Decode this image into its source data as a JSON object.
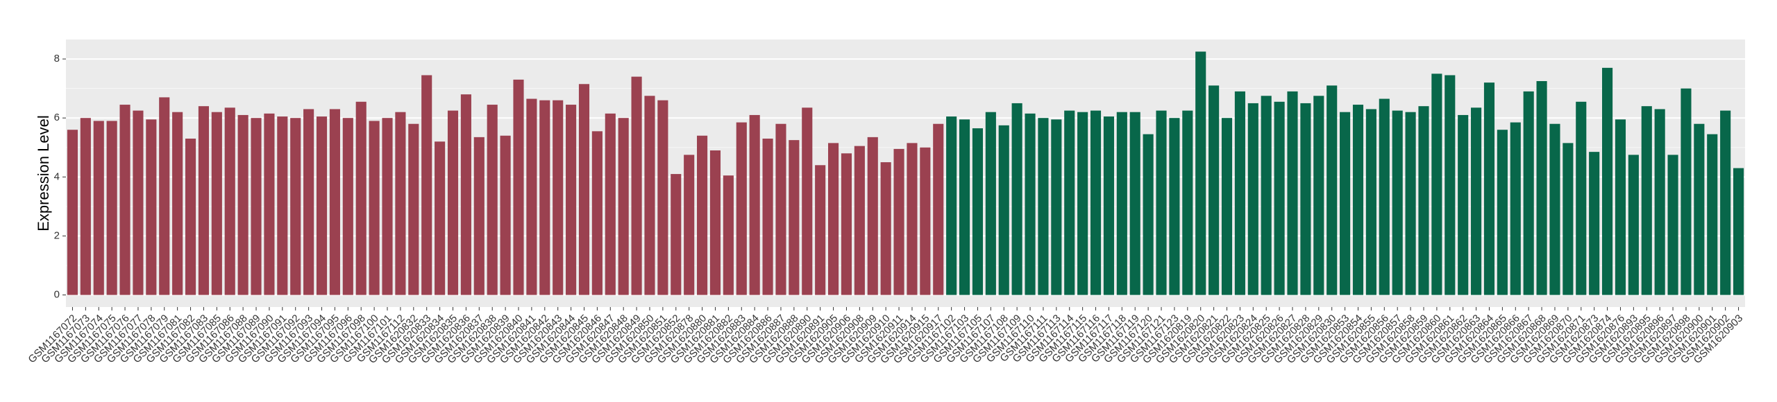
{
  "chart_data": {
    "type": "bar",
    "y_label": "Expression Level",
    "categories": [
      "GSM1167072",
      "GSM1167073",
      "GSM1167074",
      "GSM1167075",
      "GSM1167076",
      "GSM1167077",
      "GSM1167078",
      "GSM1167079",
      "GSM1167081",
      "GSM1167082",
      "GSM1167083",
      "GSM1167085",
      "GSM1167086",
      "GSM1167088",
      "GSM1167089",
      "GSM1167090",
      "GSM1167091",
      "GSM1167092",
      "GSM1167093",
      "GSM1167094",
      "GSM1167095",
      "GSM1167096",
      "GSM1167098",
      "GSM1167100",
      "GSM1167101",
      "GSM1167112",
      "GSM1620832",
      "GSM1620833",
      "GSM1620834",
      "GSM1620835",
      "GSM1620836",
      "GSM1620837",
      "GSM1620838",
      "GSM1620839",
      "GSM1620840",
      "GSM1620841",
      "GSM1620842",
      "GSM1620843",
      "GSM1620844",
      "GSM1620845",
      "GSM1620846",
      "GSM1620847",
      "GSM1620848",
      "GSM1620849",
      "GSM1620850",
      "GSM1620851",
      "GSM1620852",
      "GSM1620878",
      "GSM1620880",
      "GSM1620881",
      "GSM1620882",
      "GSM1620883",
      "GSM1620884",
      "GSM1620886",
      "GSM1620887",
      "GSM1620888",
      "GSM1620890",
      "GSM1620891",
      "GSM1620905",
      "GSM1620906",
      "GSM1620908",
      "GSM1620909",
      "GSM1620910",
      "GSM1620911",
      "GSM1620914",
      "GSM1620915",
      "GSM1620917",
      "GSM1167102",
      "GSM1167103",
      "GSM1167105",
      "GSM1167107",
      "GSM1167108",
      "GSM1167109",
      "GSM1167110",
      "GSM1167111",
      "GSM1167113",
      "GSM1167114",
      "GSM1167115",
      "GSM1167116",
      "GSM1167117",
      "GSM1167118",
      "GSM1167119",
      "GSM1167120",
      "GSM1167121",
      "GSM1167123",
      "GSM1620819",
      "GSM1620820",
      "GSM1620821",
      "GSM1620822",
      "GSM1620823",
      "GSM1620824",
      "GSM1620825",
      "GSM1620826",
      "GSM1620827",
      "GSM1620828",
      "GSM1620829",
      "GSM1620830",
      "GSM1620853",
      "GSM1620854",
      "GSM1620855",
      "GSM1620856",
      "GSM1620857",
      "GSM1620858",
      "GSM1620859",
      "GSM1620860",
      "GSM1620861",
      "GSM1620862",
      "GSM1620863",
      "GSM1620864",
      "GSM1620865",
      "GSM1620866",
      "GSM1620867",
      "GSM1620868",
      "GSM1620869",
      "GSM1620870",
      "GSM1620871",
      "GSM1620873",
      "GSM1620874",
      "GSM1620876",
      "GSM1620893",
      "GSM1620895",
      "GSM1620896",
      "GSM1620897",
      "GSM1620898",
      "GSM1620900",
      "GSM1620901",
      "GSM1620902",
      "GSM1620903"
    ],
    "series": [
      {
        "color": "#9b4150",
        "values": [
          5.6,
          6.0,
          5.9,
          5.9,
          6.45,
          6.25,
          5.95,
          6.7,
          6.2,
          5.3,
          6.4,
          6.2,
          6.35,
          6.1,
          6.0,
          6.15,
          6.05,
          6.0,
          6.3,
          6.05,
          6.3,
          6.0,
          6.55,
          5.9,
          6.0,
          6.2,
          5.8,
          7.45,
          5.2,
          6.25,
          6.8,
          5.35,
          6.45,
          5.4,
          7.3,
          6.65,
          6.6,
          6.6,
          6.45,
          7.15,
          5.55,
          6.15,
          6.0,
          7.4,
          6.75,
          6.6,
          4.1,
          4.75,
          5.4,
          4.9,
          4.05,
          5.85,
          6.1,
          5.3,
          5.8,
          5.25,
          6.35,
          4.4,
          5.15,
          4.8,
          5.05,
          5.35,
          4.5,
          4.95,
          5.15,
          5.0,
          5.8,
          null,
          null,
          null,
          null,
          null,
          null,
          null,
          null,
          null,
          null,
          null,
          null,
          null,
          null,
          null,
          null,
          null,
          null,
          null,
          null,
          null,
          null,
          null,
          null,
          null,
          null,
          null,
          null,
          null,
          null,
          null,
          null,
          null,
          null,
          null,
          null,
          null,
          null,
          null,
          null,
          null,
          null,
          null,
          null,
          null,
          null,
          null,
          null,
          null,
          null,
          null,
          null,
          null,
          null,
          null,
          null,
          null,
          null,
          null,
          null,
          null
        ]
      },
      {
        "color": "#08674a",
        "values": [
          null,
          null,
          null,
          null,
          null,
          null,
          null,
          null,
          null,
          null,
          null,
          null,
          null,
          null,
          null,
          null,
          null,
          null,
          null,
          null,
          null,
          null,
          null,
          null,
          null,
          null,
          null,
          null,
          null,
          null,
          null,
          null,
          null,
          null,
          null,
          null,
          null,
          null,
          null,
          null,
          null,
          null,
          null,
          null,
          null,
          null,
          null,
          null,
          null,
          null,
          null,
          null,
          null,
          null,
          null,
          null,
          null,
          null,
          null,
          null,
          null,
          null,
          null,
          null,
          null,
          null,
          null,
          6.05,
          5.95,
          5.65,
          6.2,
          5.75,
          6.5,
          6.15,
          6.0,
          5.95,
          6.25,
          6.2,
          6.25,
          6.05,
          6.2,
          6.2,
          5.45,
          6.25,
          6.0,
          6.25,
          8.25,
          7.1,
          6.0,
          6.9,
          6.5,
          6.75,
          6.55,
          6.9,
          6.5,
          6.75,
          7.1,
          6.2,
          6.45,
          6.3,
          6.65,
          6.25,
          6.2,
          6.4,
          7.5,
          7.45,
          6.1,
          6.35,
          7.2,
          5.6,
          5.85,
          6.9,
          7.25,
          5.8,
          5.15,
          6.55,
          4.85,
          7.7,
          5.95,
          4.75,
          6.4,
          6.3,
          4.75,
          7.0,
          5.8,
          5.45,
          6.25,
          4.3
        ]
      }
    ],
    "ylim": [
      -0.41,
      8.66
    ],
    "yticks": [
      0,
      2,
      4,
      6,
      8
    ],
    "grid": true
  }
}
